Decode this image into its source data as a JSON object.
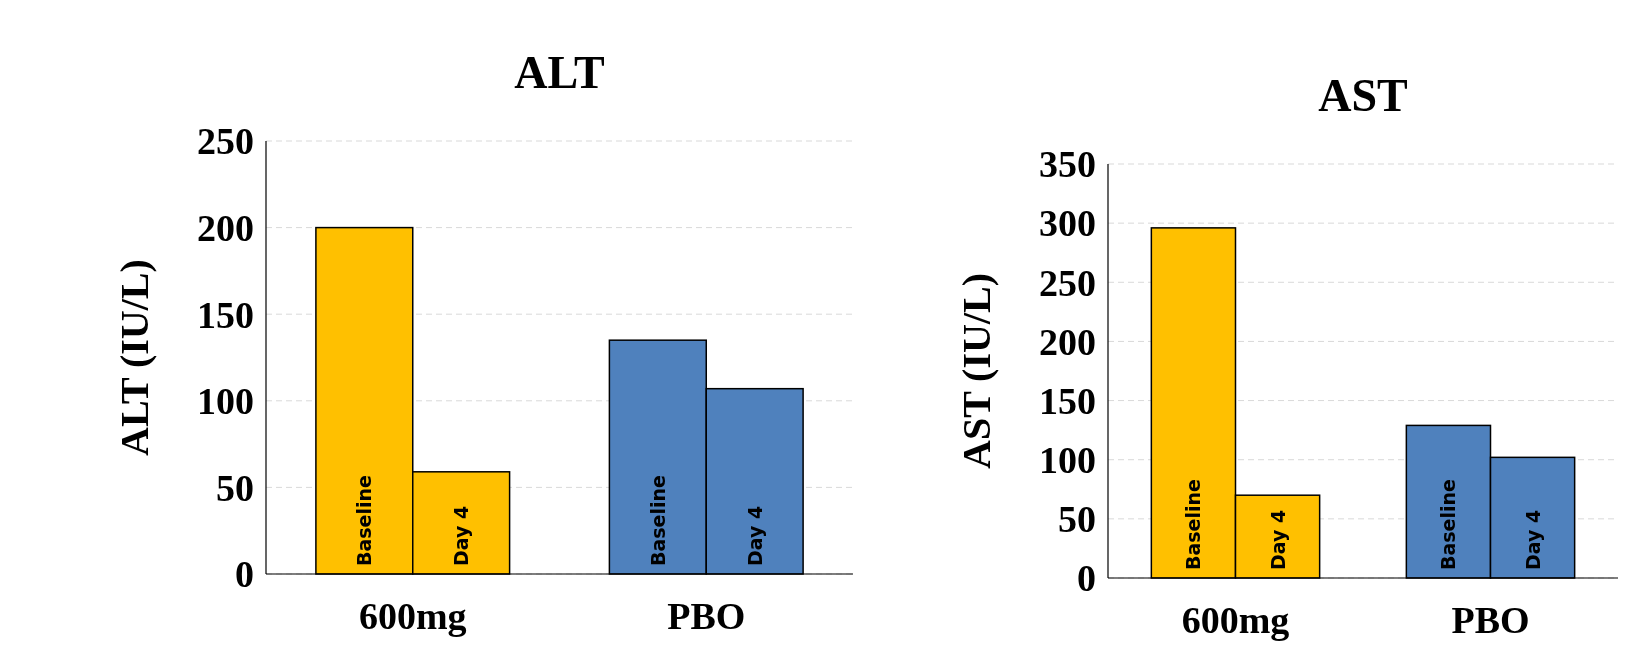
{
  "chart_data": [
    {
      "type": "bar",
      "title": "ALT",
      "ylabel": "ALT (IU/L)",
      "categories": [
        "600mg",
        "PBO"
      ],
      "series": [
        {
          "name": "Baseline",
          "colors": [
            "#ffc000",
            "#4f81bd"
          ],
          "values": [
            200,
            135
          ]
        },
        {
          "name": "Day 4",
          "colors": [
            "#ffc000",
            "#4f81bd"
          ],
          "values": [
            59,
            107
          ]
        }
      ],
      "ylim": [
        0,
        250
      ],
      "yticks": [
        0,
        50,
        100,
        150,
        200,
        250
      ],
      "grid": "y"
    },
    {
      "type": "bar",
      "title": "AST",
      "ylabel": "AST (IU/L)",
      "categories": [
        "600mg",
        "PBO"
      ],
      "series": [
        {
          "name": "Baseline",
          "colors": [
            "#ffc000",
            "#4f81bd"
          ],
          "values": [
            296,
            129
          ]
        },
        {
          "name": "Day 4",
          "colors": [
            "#ffc000",
            "#4f81bd"
          ],
          "values": [
            70,
            102
          ]
        }
      ],
      "ylim": [
        0,
        350
      ],
      "yticks": [
        0,
        50,
        100,
        150,
        200,
        250,
        300,
        350
      ],
      "grid": "y"
    }
  ]
}
